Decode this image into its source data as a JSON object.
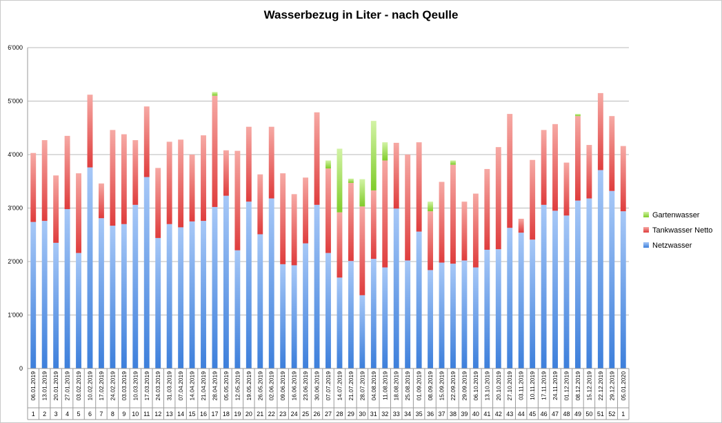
{
  "chart_data": {
    "type": "bar",
    "stacked": true,
    "title": "Wasserbezug in Liter - nach Qeulle",
    "xlabel": "",
    "ylabel": "",
    "ylim": [
      0,
      6000
    ],
    "yticks": [
      "0",
      "1'000",
      "2'000",
      "3'000",
      "4'000",
      "5'000",
      "6'000"
    ],
    "grid": true,
    "legend_position": "right",
    "categories": [
      "06.01.2019",
      "13.01.2019",
      "20.01.2019",
      "27.01.2019",
      "03.02.2019",
      "10.02.2019",
      "17.02.2019",
      "24.02.2019",
      "03.03.2019",
      "10.03.2019",
      "17.03.2019",
      "24.03.2019",
      "31.03.2019",
      "07.04.2019",
      "14.04.2019",
      "21.04.2019",
      "28.04.2019",
      "05.05.2019",
      "12.05.2019",
      "19.05.2019",
      "26.05.2019",
      "02.06.2019",
      "09.06.2019",
      "16.06.2019",
      "23.06.2019",
      "30.06.2019",
      "07.07.2019",
      "14.07.2019",
      "21.07.2019",
      "28.07.2019",
      "04.08.2019",
      "11.08.2019",
      "18.08.2019",
      "25.08.2019",
      "01.09.2019",
      "08.09.2019",
      "15.09.2019",
      "22.09.2019",
      "29.09.2019",
      "06.10.2019",
      "13.10.2019",
      "20.10.2019",
      "27.10.2019",
      "03.11.2019",
      "10.11.2019",
      "17.11.2019",
      "24.11.2019",
      "01.12.2019",
      "08.12.2019",
      "15.12.2019",
      "22.12.2019",
      "29.12.2019",
      "05.01.2020"
    ],
    "weeks": [
      "1",
      "2",
      "3",
      "4",
      "5",
      "6",
      "7",
      "8",
      "9",
      "10",
      "11",
      "12",
      "13",
      "14",
      "15",
      "16",
      "17",
      "18",
      "19",
      "20",
      "21",
      "22",
      "23",
      "24",
      "25",
      "26",
      "27",
      "28",
      "29",
      "30",
      "31",
      "32",
      "33",
      "34",
      "35",
      "36",
      "37",
      "38",
      "39",
      "40",
      "41",
      "42",
      "43",
      "44",
      "45",
      "46",
      "47",
      "48",
      "49",
      "50",
      "51",
      "52",
      "1"
    ],
    "series": [
      {
        "name": "Netzwasser",
        "color": "#4a86dc",
        "values": [
          2740,
          2760,
          2350,
          2980,
          2160,
          3760,
          2810,
          2670,
          2700,
          3060,
          3580,
          2440,
          2700,
          2640,
          2750,
          2760,
          3020,
          3230,
          2210,
          3120,
          2510,
          3180,
          1950,
          1930,
          2340,
          3060,
          2160,
          1700,
          2010,
          1370,
          2050,
          1890,
          2990,
          2020,
          2560,
          1840,
          1980,
          1960,
          2020,
          1890,
          2220,
          2230,
          2630,
          2540,
          2410,
          3060,
          2950,
          2860,
          3140,
          3180,
          3710,
          3320,
          2940
        ]
      },
      {
        "name": "Tankwasser Netto",
        "color": "#e35151",
        "values": [
          1290,
          1510,
          1260,
          1370,
          1490,
          1360,
          650,
          1790,
          1680,
          1210,
          1320,
          1310,
          1540,
          1640,
          1250,
          1600,
          2080,
          850,
          1860,
          1400,
          1120,
          1340,
          1700,
          1330,
          1230,
          1730,
          1580,
          1220,
          1460,
          1660,
          1280,
          2000,
          1230,
          1980,
          1670,
          1100,
          1510,
          1850,
          1100,
          1380,
          1510,
          1910,
          2130,
          260,
          1490,
          1400,
          1620,
          990,
          1580,
          1000,
          1440,
          1400,
          1220
        ]
      },
      {
        "name": "Gartenwasser",
        "color": "#8bd135",
        "values": [
          0,
          0,
          0,
          0,
          0,
          0,
          0,
          0,
          0,
          0,
          0,
          0,
          0,
          0,
          0,
          0,
          70,
          0,
          0,
          0,
          0,
          0,
          0,
          0,
          0,
          0,
          150,
          1190,
          80,
          510,
          1300,
          340,
          0,
          0,
          0,
          180,
          0,
          80,
          0,
          0,
          0,
          0,
          0,
          0,
          0,
          0,
          0,
          0,
          40,
          0,
          0,
          0,
          0
        ]
      }
    ]
  }
}
